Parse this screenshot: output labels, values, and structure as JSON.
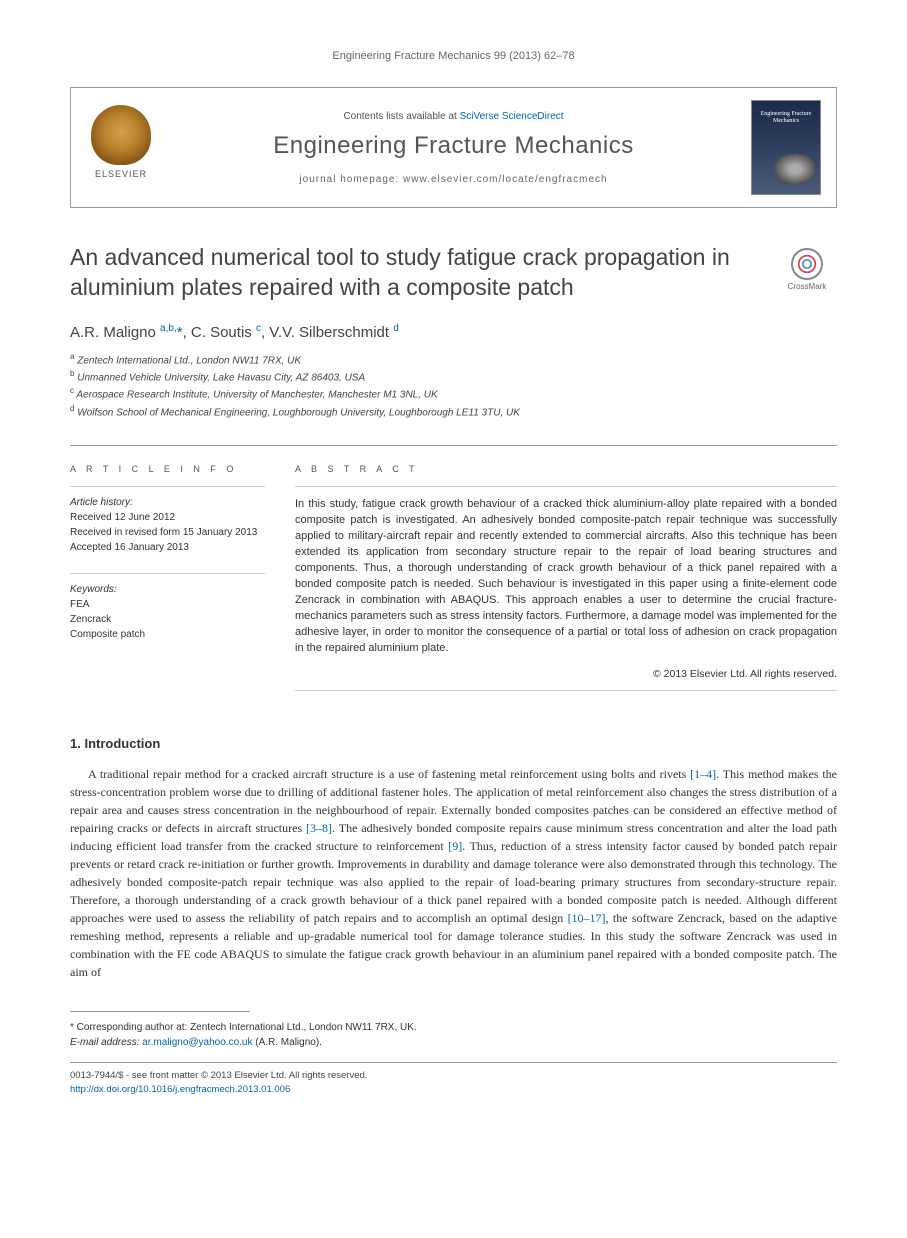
{
  "running_head": "Engineering Fracture Mechanics 99 (2013) 62–78",
  "masthead": {
    "contents_prefix": "Contents lists available at ",
    "contents_link": "SciVerse ScienceDirect",
    "journal": "Engineering Fracture Mechanics",
    "homepage_prefix": "journal homepage: ",
    "homepage_url": "www.elsevier.com/locate/engfracmech",
    "publisher": "ELSEVIER",
    "cover_title": "Engineering Fracture Mechanics"
  },
  "crossmark": "CrossMark",
  "title": "An advanced numerical tool to study fatigue crack propagation in aluminium plates repaired with a composite patch",
  "authors_html": "A.R. Maligno <sup>a,b,</sup><span class='corr'>*</span>, C. Soutis <sup>c</sup>, V.V. Silberschmidt <sup>d</sup>",
  "affiliations": [
    {
      "key": "a",
      "text": "Zentech International Ltd., London NW11 7RX, UK"
    },
    {
      "key": "b",
      "text": "Unmanned Vehicle University, Lake Havasu City, AZ 86403, USA"
    },
    {
      "key": "c",
      "text": "Aerospace Research Institute, University of Manchester, Manchester M1 3NL, UK"
    },
    {
      "key": "d",
      "text": "Wolfson School of Mechanical Engineering, Loughborough University, Loughborough LE11 3TU, UK"
    }
  ],
  "article_info": {
    "label": "A R T I C L E   I N F O",
    "history_label": "Article history:",
    "history": [
      "Received 12 June 2012",
      "Received in revised form 15 January 2013",
      "Accepted 16 January 2013"
    ],
    "keywords_label": "Keywords:",
    "keywords": [
      "FEA",
      "Zencrack",
      "Composite patch"
    ]
  },
  "abstract": {
    "label": "A B S T R A C T",
    "text": "In this study, fatigue crack growth behaviour of a cracked thick aluminium-alloy plate repaired with a bonded composite patch is investigated. An adhesively bonded composite-patch repair technique was successfully applied to military-aircraft repair and recently extended to commercial aircrafts. Also this technique has been extended its application from secondary structure repair to the repair of load bearing structures and components. Thus, a thorough understanding of crack growth behaviour of a thick panel repaired with a bonded composite patch is needed. Such behaviour is investigated in this paper using a finite-element code Zencrack in combination with ABAQUS. This approach enables a user to determine the crucial fracture-mechanics parameters such as stress intensity factors. Furthermore, a damage model was implemented for the adhesive layer, in order to monitor the consequence of a partial or total loss of adhesion on crack propagation in the repaired aluminium plate.",
    "copyright": "© 2013 Elsevier Ltd. All rights reserved."
  },
  "section1": {
    "heading": "1. Introduction",
    "paragraph": "A traditional repair method for a cracked aircraft structure is a use of fastening metal reinforcement using bolts and rivets [1–4]. This method makes the stress-concentration problem worse due to drilling of additional fastener holes. The application of metal reinforcement also changes the stress distribution of a repair area and causes stress concentration in the neighbourhood of repair. Externally bonded composites patches can be considered an effective method of repairing cracks or defects in aircraft structures [3–8]. The adhesively bonded composite repairs cause minimum stress concentration and alter the load path inducing efficient load transfer from the cracked structure to reinforcement [9]. Thus, reduction of a stress intensity factor caused by bonded patch repair prevents or retard crack re-initiation or further growth. Improvements in durability and damage tolerance were also demonstrated through this technology. The adhesively bonded composite-patch repair technique was also applied to the repair of load-bearing primary structures from secondary-structure repair. Therefore, a thorough understanding of a crack growth behaviour of a thick panel repaired with a bonded composite patch is needed. Although different approaches were used to assess the reliability of patch repairs and to accomplish an optimal design [10–17], the software Zencrack, based on the adaptive remeshing method, represents a reliable and up-gradable numerical tool for damage tolerance studies. In this study the software Zencrack was used in combination with the FE code ABAQUS to simulate the fatigue crack growth behaviour in an aluminium panel repaired with a bonded composite patch. The aim of",
    "citations": [
      "[1–4]",
      "[3–8]",
      "[9]",
      "[10–17]"
    ]
  },
  "footnotes": {
    "corresponding": "Corresponding author at: Zentech International Ltd., London NW11 7RX, UK.",
    "email_label": "E-mail address:",
    "email": "ar.maligno@yahoo.co.uk",
    "email_author": "(A.R. Maligno)."
  },
  "copyright_block": {
    "line1": "0013-7944/$ - see front matter © 2013 Elsevier Ltd. All rights reserved.",
    "doi": "http://dx.doi.org/10.1016/j.engfracmech.2013.01.006"
  },
  "colors": {
    "link": "#0066aa",
    "text": "#333333",
    "muted": "#666666",
    "border": "#999999",
    "elsevier_orange": "#d4a04a",
    "cover_bg": "#1a2a4a"
  },
  "typography": {
    "title_fontsize": 23,
    "journal_fontsize": 24,
    "body_fontsize": 12,
    "abstract_fontsize": 11,
    "small_fontsize": 10
  }
}
